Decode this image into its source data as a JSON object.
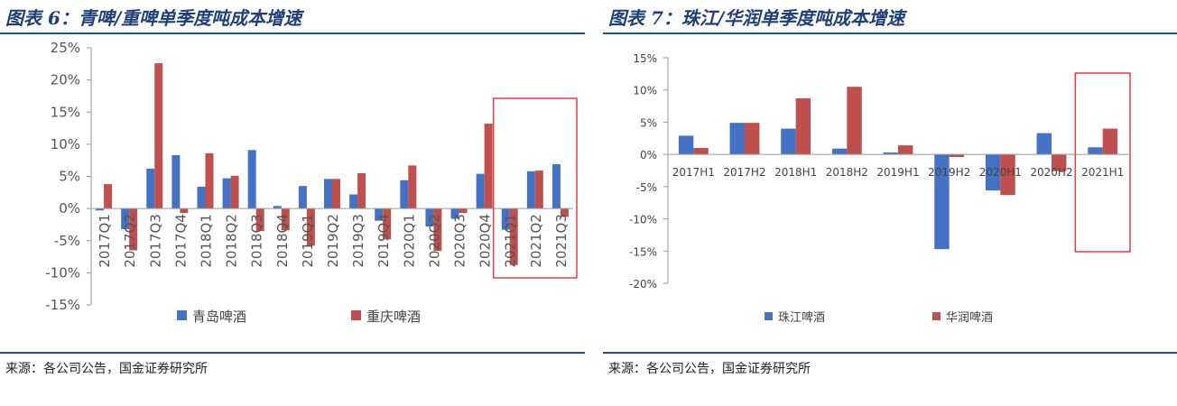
{
  "left": {
    "title": "图表 6：青啤/重啤单季度吨成本增速",
    "source": "来源：各公司公告，国金证券研究所"
  },
  "right": {
    "title": "图表 7：珠江/华润单季度吨成本增速",
    "source": "来源：各公司公告，国金证券研究所"
  },
  "colors": {
    "series1": "#4472c4",
    "series2": "#c0504d",
    "highlight": "#e04040",
    "axis": "#999999"
  },
  "chart_data": [
    {
      "type": "bar",
      "categories": [
        "2017Q1",
        "2017Q2",
        "2017Q3",
        "2017Q4",
        "2018Q1",
        "2018Q2",
        "2018Q3",
        "2018Q4",
        "2019Q1",
        "2019Q2",
        "2019Q3",
        "2019Q4",
        "2020Q1",
        "2020Q2",
        "2020Q3",
        "2020Q4",
        "2021Q1",
        "2021Q2",
        "2021Q3"
      ],
      "series": [
        {
          "name": "青岛啤酒",
          "values": [
            -0.3,
            -3.2,
            6.2,
            8.3,
            3.4,
            4.7,
            9.1,
            0.4,
            3.5,
            4.6,
            2.2,
            -1.9,
            4.4,
            -2.8,
            -1.6,
            5.4,
            -3.3,
            5.8,
            6.9
          ]
        },
        {
          "name": "重庆啤酒",
          "values": [
            3.8,
            -6.5,
            22.6,
            -0.7,
            8.6,
            5.1,
            -3.5,
            -3.4,
            -5.8,
            4.6,
            5.5,
            -4.8,
            6.7,
            -6.6,
            -0.7,
            13.2,
            -8.8,
            5.9,
            -1.3
          ]
        }
      ],
      "ylim": [
        -15,
        25
      ],
      "yticks": [
        "25%",
        "20%",
        "15%",
        "10%",
        "5%",
        "0%",
        "-5%",
        "-10%",
        "-15%"
      ],
      "highlight_categories": [
        "2021Q1",
        "2021Q2",
        "2021Q3"
      ],
      "legend_position": "bottom"
    },
    {
      "type": "bar",
      "categories": [
        "2017H1",
        "2017H2",
        "2018H1",
        "2018H2",
        "2019H1",
        "2019H2",
        "2020H1",
        "2020H2",
        "2021H1"
      ],
      "series": [
        {
          "name": "珠江啤酒",
          "values": [
            2.9,
            4.9,
            4.0,
            0.9,
            0.3,
            -14.7,
            -5.6,
            3.3,
            1.1
          ]
        },
        {
          "name": "华润啤酒",
          "values": [
            1.0,
            4.9,
            8.7,
            10.5,
            1.4,
            -0.4,
            -6.3,
            -2.6,
            4.0
          ]
        }
      ],
      "ylim": [
        -20,
        15
      ],
      "yticks": [
        "15%",
        "10%",
        "5%",
        "0%",
        "-5%",
        "-10%",
        "-15%",
        "-20%"
      ],
      "highlight_categories": [
        "2021H1"
      ],
      "legend_position": "bottom"
    }
  ]
}
